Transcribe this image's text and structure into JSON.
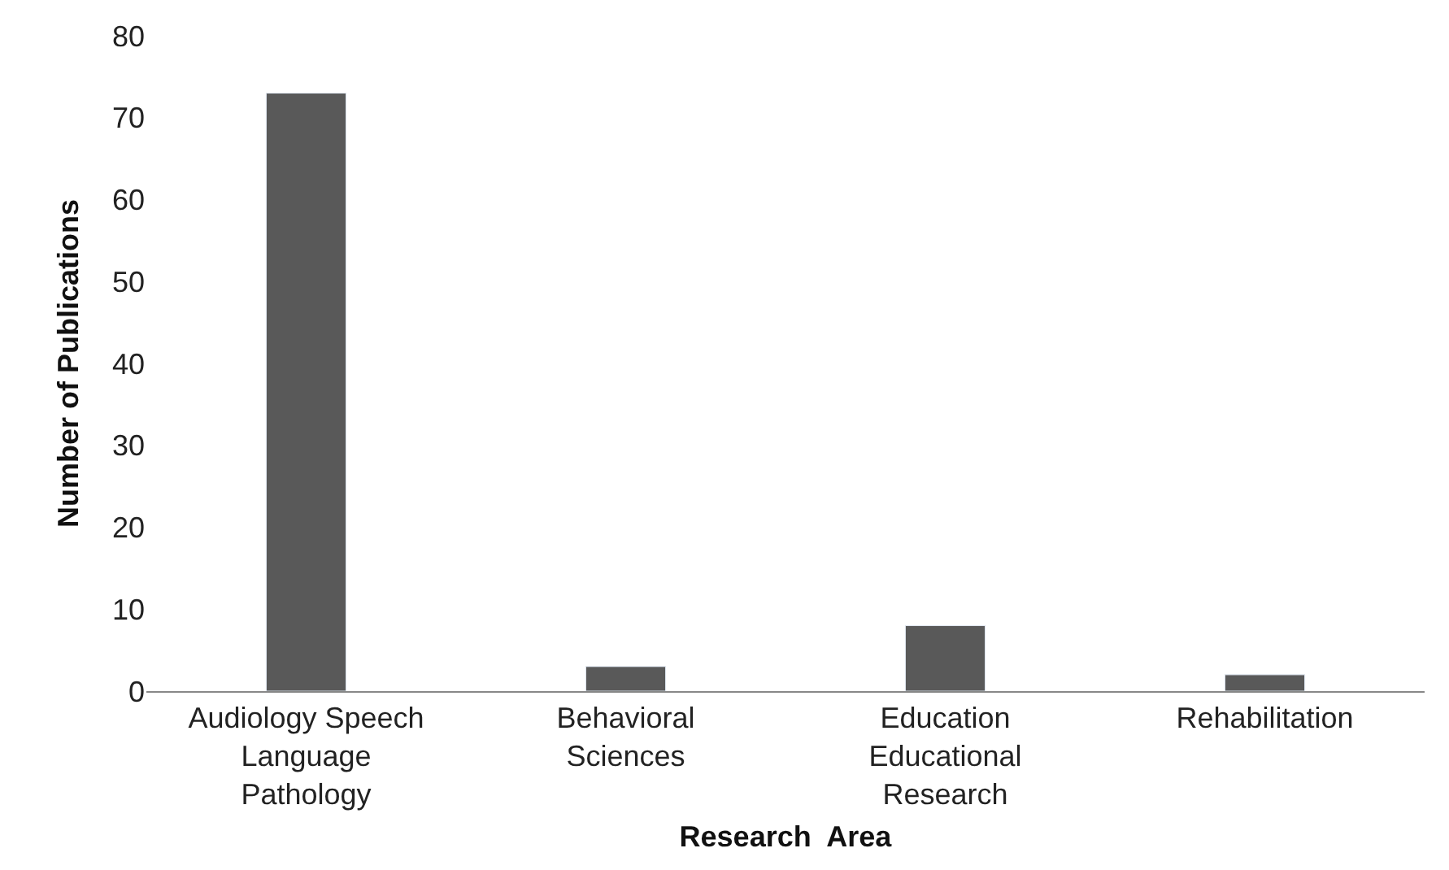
{
  "chart_data": {
    "type": "bar",
    "xlabel": "Research  Area",
    "ylabel": "Number of Publications",
    "categories": [
      "Audiology Speech Language Pathology",
      "Behavioral Sciences",
      "Education Educational Research",
      "Rehabilitation"
    ],
    "values": [
      73,
      3,
      8,
      2
    ],
    "color": "#595959",
    "ylim": [
      0,
      80
    ],
    "yticks": [
      0,
      10,
      20,
      30,
      40,
      50,
      60,
      70,
      80
    ]
  }
}
